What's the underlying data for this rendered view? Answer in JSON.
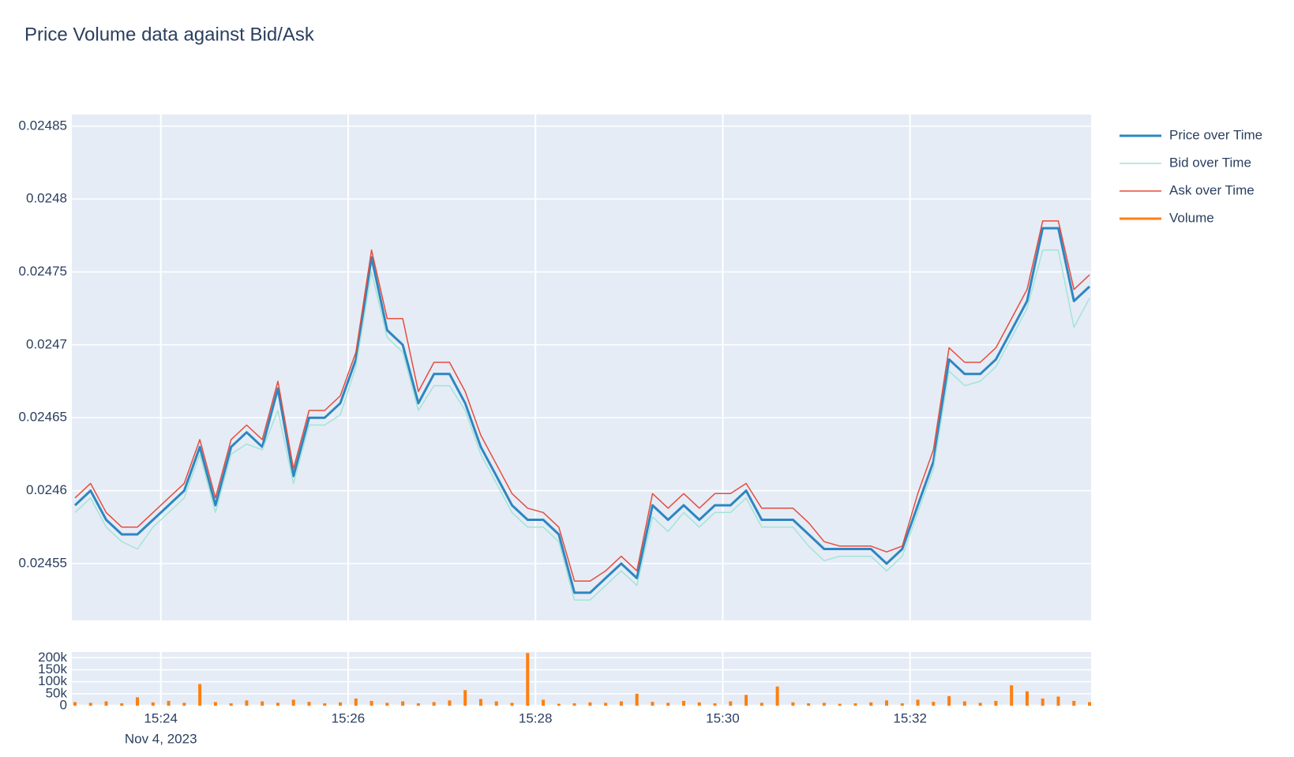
{
  "chart_data": [
    {
      "type": "line",
      "title": "Price Volume data against Bid/Ask",
      "x": [
        "2023-11-04 15:23:05",
        "2023-11-04 15:23:15",
        "2023-11-04 15:23:25",
        "2023-11-04 15:23:35",
        "2023-11-04 15:23:45",
        "2023-11-04 15:23:55",
        "2023-11-04 15:24:05",
        "2023-11-04 15:24:15",
        "2023-11-04 15:24:25",
        "2023-11-04 15:24:35",
        "2023-11-04 15:24:45",
        "2023-11-04 15:24:55",
        "2023-11-04 15:25:05",
        "2023-11-04 15:25:15",
        "2023-11-04 15:25:25",
        "2023-11-04 15:25:35",
        "2023-11-04 15:25:45",
        "2023-11-04 15:25:55",
        "2023-11-04 15:26:05",
        "2023-11-04 15:26:15",
        "2023-11-04 15:26:25",
        "2023-11-04 15:26:35",
        "2023-11-04 15:26:45",
        "2023-11-04 15:26:55",
        "2023-11-04 15:27:05",
        "2023-11-04 15:27:15",
        "2023-11-04 15:27:25",
        "2023-11-04 15:27:35",
        "2023-11-04 15:27:45",
        "2023-11-04 15:27:55",
        "2023-11-04 15:28:05",
        "2023-11-04 15:28:15",
        "2023-11-04 15:28:25",
        "2023-11-04 15:28:35",
        "2023-11-04 15:28:45",
        "2023-11-04 15:28:55",
        "2023-11-04 15:29:05",
        "2023-11-04 15:29:15",
        "2023-11-04 15:29:25",
        "2023-11-04 15:29:35",
        "2023-11-04 15:29:45",
        "2023-11-04 15:29:55",
        "2023-11-04 15:30:05",
        "2023-11-04 15:30:15",
        "2023-11-04 15:30:25",
        "2023-11-04 15:30:35",
        "2023-11-04 15:30:45",
        "2023-11-04 15:30:55",
        "2023-11-04 15:31:05",
        "2023-11-04 15:31:15",
        "2023-11-04 15:31:25",
        "2023-11-04 15:31:35",
        "2023-11-04 15:31:45",
        "2023-11-04 15:31:55",
        "2023-11-04 15:32:05",
        "2023-11-04 15:32:15",
        "2023-11-04 15:32:25",
        "2023-11-04 15:32:35",
        "2023-11-04 15:32:45",
        "2023-11-04 15:32:55",
        "2023-11-04 15:33:05",
        "2023-11-04 15:33:15",
        "2023-11-04 15:33:25",
        "2023-11-04 15:33:35",
        "2023-11-04 15:33:45",
        "2023-11-04 15:33:55"
      ],
      "series": [
        {
          "name": "Price over Time",
          "color": "#2e86c1",
          "width": 3,
          "values": [
            0.02459,
            0.0246,
            0.02458,
            0.02457,
            0.02457,
            0.02458,
            0.02459,
            0.0246,
            0.02463,
            0.02459,
            0.02463,
            0.02464,
            0.02463,
            0.02467,
            0.02461,
            0.02465,
            0.02465,
            0.02466,
            0.02469,
            0.02476,
            0.02471,
            0.0247,
            0.02466,
            0.02468,
            0.02468,
            0.02466,
            0.02463,
            0.02461,
            0.02459,
            0.02458,
            0.02458,
            0.02457,
            0.02453,
            0.02453,
            0.02454,
            0.02455,
            0.02454,
            0.02459,
            0.02458,
            0.02459,
            0.02458,
            0.02459,
            0.02459,
            0.0246,
            0.02458,
            0.02458,
            0.02458,
            0.02457,
            0.02456,
            0.02456,
            0.02456,
            0.02456,
            0.02455,
            0.02456,
            0.02459,
            0.02462,
            0.02469,
            0.02468,
            0.02468,
            0.02469,
            0.02471,
            0.02473,
            0.02478,
            0.02478,
            0.02473,
            0.02474
          ]
        },
        {
          "name": "Bid over Time",
          "color": "#a3e4d7",
          "width": 1.5,
          "values": [
            0.024585,
            0.024595,
            0.024575,
            0.024565,
            0.02456,
            0.024575,
            0.024585,
            0.024595,
            0.024625,
            0.024585,
            0.024625,
            0.024632,
            0.024628,
            0.024655,
            0.024605,
            0.024645,
            0.024645,
            0.024652,
            0.024685,
            0.02475,
            0.024705,
            0.024695,
            0.024655,
            0.024672,
            0.024672,
            0.024655,
            0.024625,
            0.024605,
            0.024585,
            0.024575,
            0.024575,
            0.024565,
            0.024525,
            0.024525,
            0.024535,
            0.024545,
            0.024535,
            0.024582,
            0.024572,
            0.024585,
            0.024575,
            0.024585,
            0.024585,
            0.024595,
            0.024575,
            0.024575,
            0.024575,
            0.024562,
            0.024552,
            0.024555,
            0.024555,
            0.024555,
            0.024545,
            0.024555,
            0.024585,
            0.024615,
            0.024682,
            0.024672,
            0.024675,
            0.024685,
            0.024705,
            0.024725,
            0.024765,
            0.024765,
            0.024712,
            0.024732
          ]
        },
        {
          "name": "Ask over Time",
          "color": "#e74c3c",
          "width": 1.5,
          "values": [
            0.024595,
            0.024605,
            0.024585,
            0.024575,
            0.024575,
            0.024585,
            0.024595,
            0.024605,
            0.024635,
            0.024595,
            0.024635,
            0.024645,
            0.024635,
            0.024675,
            0.024615,
            0.024655,
            0.024655,
            0.024665,
            0.024695,
            0.024765,
            0.024718,
            0.024718,
            0.024668,
            0.024688,
            0.024688,
            0.024668,
            0.024638,
            0.024618,
            0.024598,
            0.024588,
            0.024585,
            0.024575,
            0.024538,
            0.024538,
            0.024545,
            0.024555,
            0.024545,
            0.024598,
            0.024588,
            0.024598,
            0.024588,
            0.024598,
            0.024598,
            0.024605,
            0.024588,
            0.024588,
            0.024588,
            0.024578,
            0.024565,
            0.024562,
            0.024562,
            0.024562,
            0.024558,
            0.024562,
            0.024598,
            0.024628,
            0.024698,
            0.024688,
            0.024688,
            0.024698,
            0.024718,
            0.024738,
            0.024785,
            0.024785,
            0.024738,
            0.024748
          ]
        }
      ],
      "xlim": [
        "2023-11-04 15:23:03",
        "2023-11-04 15:33:56"
      ],
      "xticks": [
        "2023-11-04 15:24:00",
        "2023-11-04 15:26:00",
        "2023-11-04 15:28:00",
        "2023-11-04 15:30:00",
        "2023-11-04 15:32:00"
      ],
      "ylim": [
        0.024511,
        0.024858
      ],
      "yticks": [
        0.02455,
        0.0246,
        0.02465,
        0.0247,
        0.02475,
        0.0248,
        0.02485
      ],
      "grid": true
    },
    {
      "type": "bar",
      "x": [
        "2023-11-04 15:23:05",
        "2023-11-04 15:23:15",
        "2023-11-04 15:23:25",
        "2023-11-04 15:23:35",
        "2023-11-04 15:23:45",
        "2023-11-04 15:23:55",
        "2023-11-04 15:24:05",
        "2023-11-04 15:24:15",
        "2023-11-04 15:24:25",
        "2023-11-04 15:24:35",
        "2023-11-04 15:24:45",
        "2023-11-04 15:24:55",
        "2023-11-04 15:25:05",
        "2023-11-04 15:25:15",
        "2023-11-04 15:25:25",
        "2023-11-04 15:25:35",
        "2023-11-04 15:25:45",
        "2023-11-04 15:25:55",
        "2023-11-04 15:26:05",
        "2023-11-04 15:26:15",
        "2023-11-04 15:26:25",
        "2023-11-04 15:26:35",
        "2023-11-04 15:26:45",
        "2023-11-04 15:26:55",
        "2023-11-04 15:27:05",
        "2023-11-04 15:27:15",
        "2023-11-04 15:27:25",
        "2023-11-04 15:27:35",
        "2023-11-04 15:27:45",
        "2023-11-04 15:27:55",
        "2023-11-04 15:28:05",
        "2023-11-04 15:28:15",
        "2023-11-04 15:28:25",
        "2023-11-04 15:28:35",
        "2023-11-04 15:28:45",
        "2023-11-04 15:28:55",
        "2023-11-04 15:29:05",
        "2023-11-04 15:29:15",
        "2023-11-04 15:29:25",
        "2023-11-04 15:29:35",
        "2023-11-04 15:29:45",
        "2023-11-04 15:29:55",
        "2023-11-04 15:30:05",
        "2023-11-04 15:30:15",
        "2023-11-04 15:30:25",
        "2023-11-04 15:30:35",
        "2023-11-04 15:30:45",
        "2023-11-04 15:30:55",
        "2023-11-04 15:31:05",
        "2023-11-04 15:31:15",
        "2023-11-04 15:31:25",
        "2023-11-04 15:31:35",
        "2023-11-04 15:31:45",
        "2023-11-04 15:31:55",
        "2023-11-04 15:32:05",
        "2023-11-04 15:32:15",
        "2023-11-04 15:32:25",
        "2023-11-04 15:32:35",
        "2023-11-04 15:32:45",
        "2023-11-04 15:32:55",
        "2023-11-04 15:33:05",
        "2023-11-04 15:33:15",
        "2023-11-04 15:33:25",
        "2023-11-04 15:33:35",
        "2023-11-04 15:33:45",
        "2023-11-04 15:33:55"
      ],
      "series": [
        {
          "name": "Volume",
          "color": "#ff7f0e",
          "width": 3,
          "values": [
            15000,
            12000,
            18000,
            10000,
            35000,
            14000,
            20000,
            12000,
            90000,
            15000,
            10000,
            22000,
            18000,
            12000,
            25000,
            16000,
            10000,
            14000,
            30000,
            20000,
            12000,
            18000,
            10000,
            15000,
            22000,
            65000,
            28000,
            18000,
            12000,
            220000,
            25000,
            8000,
            10000,
            14000,
            12000,
            18000,
            50000,
            16000,
            12000,
            20000,
            14000,
            10000,
            18000,
            45000,
            12000,
            80000,
            14000,
            10000,
            12000,
            8000,
            10000,
            14000,
            22000,
            10000,
            25000,
            16000,
            40000,
            18000,
            12000,
            20000,
            85000,
            60000,
            30000,
            38000,
            20000,
            15000
          ]
        }
      ],
      "xlim": [
        "2023-11-04 15:23:03",
        "2023-11-04 15:33:56"
      ],
      "xticks": [
        {
          "value": "2023-11-04 15:24:00",
          "label": "15:24"
        },
        {
          "value": "2023-11-04 15:26:00",
          "label": "15:26"
        },
        {
          "value": "2023-11-04 15:28:00",
          "label": "15:28"
        },
        {
          "value": "2023-11-04 15:30:00",
          "label": "15:30"
        },
        {
          "value": "2023-11-04 15:32:00",
          "label": "15:32"
        }
      ],
      "date_label": "Nov 4, 2023",
      "ylim": [
        0,
        224000
      ],
      "yticks": [
        0,
        {
          "value": 50000,
          "label": "50k"
        },
        {
          "value": 100000,
          "label": "100k"
        },
        {
          "value": 150000,
          "label": "150k"
        },
        {
          "value": 200000,
          "label": "200k"
        }
      ],
      "grid": true
    }
  ]
}
